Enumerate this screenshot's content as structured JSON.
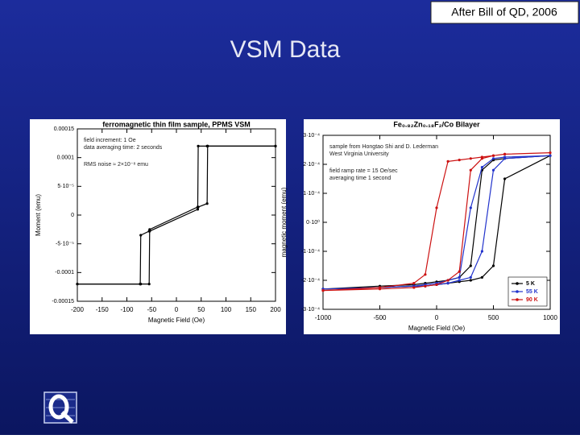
{
  "header": {
    "note": "After Bill of QD, 2006",
    "title": "VSM Data"
  },
  "chart_data": [
    {
      "type": "line",
      "title": "ferromagnetic thin film sample, PPMS VSM",
      "x_label": "Magnetic Field (Oe)",
      "y_label": "Moment (emu)",
      "annotations": [
        "field increment: 1 Oe",
        "data averaging time: 2 seconds",
        "RMS noise ≈ 2×10⁻⁸ emu"
      ],
      "x": [
        -200,
        -73,
        -72,
        -55,
        -54,
        43,
        44,
        62,
        63,
        200
      ],
      "series": [
        {
          "color": "#000000",
          "values": [
            -0.00012,
            -0.00012,
            -3.5e-05,
            -2.8e-05,
            -2.8e-05,
            1e-05,
            0.00012,
            0.00012,
            0.00012,
            0.00012
          ]
        },
        {
          "color": "#000000",
          "values": [
            -0.00012,
            -0.00012,
            -0.00012,
            -0.00012,
            -2.5e-05,
            1.4e-05,
            1.4e-05,
            2e-05,
            0.00012,
            0.00012
          ]
        }
      ],
      "xlim": [
        -200,
        200
      ],
      "xticks": [
        -200,
        -150,
        -100,
        -50,
        0,
        50,
        100,
        150,
        200
      ],
      "ylim": [
        -0.00015,
        0.00015
      ],
      "yticks": [
        0.00015,
        0.0001,
        {
          "value": 5e-05,
          "label": "5·10⁻⁵"
        },
        0,
        {
          "value": -5e-05,
          "label": "-5·10⁻⁵"
        },
        -0.0001,
        -0.00015
      ]
    },
    {
      "type": "line",
      "title": "Fe₀.₈₂Zn₀.₁₈F₂/Co Bilayer",
      "x_label": "Magnetic Field (Oe)",
      "y_label": "magnetic moment (emu)",
      "annotations": [
        "sample from Hongtao Shi and D. Lederman",
        "West Virginia University",
        "field ramp rate = 15 Oe/sec",
        "averaging time 1 second"
      ],
      "x": [
        -1000,
        -500,
        -200,
        -100,
        0,
        100,
        200,
        300,
        400,
        500,
        600,
        1000,
        600,
        500,
        400,
        300,
        200,
        100,
        0,
        -100,
        -200,
        -500,
        -1000
      ],
      "series": [
        {
          "name": "5 K",
          "color": "#000000",
          "values": [
            -0.00023,
            -0.000225,
            -0.00022,
            -0.00022,
            -0.000215,
            -0.00021,
            -0.000205,
            -0.0002,
            -0.00019,
            -0.00015,
            0.00015,
            0.00023,
            0.00022,
            0.000215,
            0.00018,
            -0.00015,
            -0.00019,
            -0.0002,
            -0.000205,
            -0.00021,
            -0.000215,
            -0.00022,
            -0.00023
          ]
        },
        {
          "name": "55 K",
          "color": "#2233cc",
          "values": [
            -0.00023,
            -0.000225,
            -0.00022,
            -0.00022,
            -0.000215,
            -0.00021,
            -0.0002,
            -0.00019,
            -0.0001,
            0.00018,
            0.00022,
            0.00023,
            0.000225,
            0.00022,
            0.00019,
            5e-05,
            -0.00019,
            -0.0002,
            -0.00021,
            -0.000215,
            -0.00022,
            -0.000225,
            -0.00023
          ]
        },
        {
          "name": "90 K",
          "color": "#cc1111",
          "values": [
            -0.000235,
            -0.00023,
            -0.000225,
            -0.00022,
            -0.000215,
            -0.0002,
            -0.00017,
            0.00018,
            0.00022,
            0.00023,
            0.000235,
            0.00024,
            0.000235,
            0.00023,
            0.000225,
            0.00022,
            0.000215,
            0.00021,
            5e-05,
            -0.00018,
            -0.00021,
            -0.000225,
            -0.000235
          ]
        }
      ],
      "xlim": [
        -1000,
        1000
      ],
      "xticks": [
        -1000,
        -500,
        0,
        500,
        1000
      ],
      "ylim": [
        -0.0003,
        0.0003
      ],
      "yticks": [
        {
          "value": 0.0003,
          "label": "3·10⁻⁴"
        },
        {
          "value": 0.0002,
          "label": "2·10⁻⁴"
        },
        {
          "value": 0.0001,
          "label": "1·10⁻⁴"
        },
        {
          "value": 0,
          "label": "0·10⁰"
        },
        {
          "value": -0.0001,
          "label": "-1·10⁻⁴"
        },
        {
          "value": -0.0002,
          "label": "-2·10⁻⁴"
        },
        {
          "value": -0.0003,
          "label": "-3·10⁻⁴"
        }
      ],
      "legend": "lower right"
    }
  ]
}
